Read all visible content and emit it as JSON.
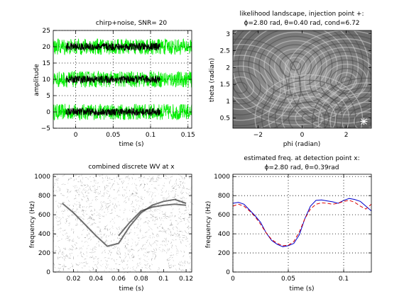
{
  "colors": {
    "noise": "#00ee00",
    "signal": "#000000",
    "estimate": "#0000cc",
    "truth": "#dd0000",
    "axis": "#000000",
    "marker": "#ffffff"
  },
  "chart_data": [
    {
      "type": "line",
      "title": "chirp+noise, SNR= 20",
      "xlabel": "time (s)",
      "ylabel": "amplitude",
      "xlim": [
        -0.03,
        0.155
      ],
      "ylim": [
        -5,
        25
      ],
      "xticks": [
        "0",
        "0.05",
        "0.1",
        "0.15"
      ],
      "yticks": [
        "−5",
        "0",
        "5",
        "10",
        "15",
        "20",
        "25"
      ],
      "grid": true,
      "offsets": [
        0,
        10,
        20
      ],
      "series": [
        {
          "color": "noise",
          "x_range": [
            -0.03,
            0.155
          ],
          "noise_amplitude": 2.5
        },
        {
          "color": "signal",
          "x_range": [
            -0.013,
            0.113
          ],
          "signal_amplitude": 1.2
        }
      ]
    },
    {
      "type": "heatmap",
      "title_lines": [
        "likelihood landscape, injection point +:",
        "ϕ=2.80 rad, θ=0.40 rad, cond=6.72"
      ],
      "xlabel": "phi (radian)",
      "ylabel": "theta (radian)",
      "xlim": [
        -3.14,
        3.14
      ],
      "ylim": [
        0.2,
        3.1
      ],
      "xticks": [
        "−2",
        "0",
        "2"
      ],
      "yticks": [
        "0.5",
        "1",
        "1.5",
        "2",
        "2.5",
        "3"
      ],
      "injection_point": {
        "phi": 2.8,
        "theta": 0.4
      }
    },
    {
      "type": "heatmap",
      "title": "combined discrete WV at x",
      "xlabel": "time (s)",
      "ylabel": "frequency (Hz)",
      "xlim": [
        0.002,
        0.125
      ],
      "ylim": [
        0,
        1024
      ],
      "xticks": [
        "0.02",
        "0.04",
        "0.06",
        "0.08",
        "0.1",
        "0.12"
      ],
      "yticks": [
        "0",
        "200",
        "400",
        "600",
        "800",
        "1000"
      ],
      "tracks": [
        {
          "t": [
            0.01,
            0.02,
            0.03,
            0.04,
            0.05,
            0.06,
            0.07,
            0.08,
            0.09,
            0.1,
            0.11,
            0.12
          ],
          "f": [
            720,
            620,
            500,
            380,
            270,
            300,
            480,
            620,
            700,
            740,
            760,
            720
          ]
        },
        {
          "t": [
            0.06,
            0.07,
            0.08,
            0.09,
            0.1,
            0.11,
            0.12
          ],
          "f": [
            380,
            520,
            640,
            680,
            700,
            710,
            700
          ]
        }
      ]
    },
    {
      "type": "line",
      "title_lines": [
        "estimated freq. at detection point x:",
        "ϕ=2.80 rad, θ=0.39rad"
      ],
      "xlabel": "time (s)",
      "ylabel": "frequency (Hz)",
      "xlim": [
        0,
        0.125
      ],
      "ylim": [
        0,
        1024
      ],
      "xticks": [
        "0",
        "0.05",
        "0.1"
      ],
      "yticks": [
        "0",
        "200",
        "400",
        "600",
        "800",
        "1000"
      ],
      "grid": true,
      "series": [
        {
          "color": "estimate",
          "style": "solid",
          "x": [
            0,
            0.005,
            0.01,
            0.015,
            0.02,
            0.025,
            0.03,
            0.035,
            0.04,
            0.045,
            0.05,
            0.055,
            0.06,
            0.065,
            0.07,
            0.075,
            0.08,
            0.085,
            0.09,
            0.095,
            0.1,
            0.105,
            0.11,
            0.115,
            0.12,
            0.125
          ],
          "y": [
            720,
            730,
            710,
            650,
            590,
            520,
            410,
            330,
            290,
            265,
            275,
            300,
            390,
            560,
            690,
            750,
            755,
            745,
            735,
            720,
            750,
            770,
            760,
            740,
            690,
            640
          ]
        },
        {
          "color": "truth",
          "style": "dashed",
          "x": [
            0,
            0.005,
            0.01,
            0.015,
            0.02,
            0.025,
            0.03,
            0.035,
            0.04,
            0.045,
            0.05,
            0.055,
            0.06,
            0.065,
            0.07,
            0.075,
            0.08,
            0.085,
            0.09,
            0.095,
            0.1,
            0.105,
            0.11,
            0.115,
            0.12,
            0.125
          ],
          "y": [
            690,
            710,
            690,
            640,
            580,
            500,
            410,
            340,
            300,
            275,
            280,
            320,
            420,
            560,
            660,
            710,
            725,
            720,
            710,
            720,
            740,
            750,
            730,
            690,
            660,
            710
          ]
        }
      ]
    }
  ]
}
